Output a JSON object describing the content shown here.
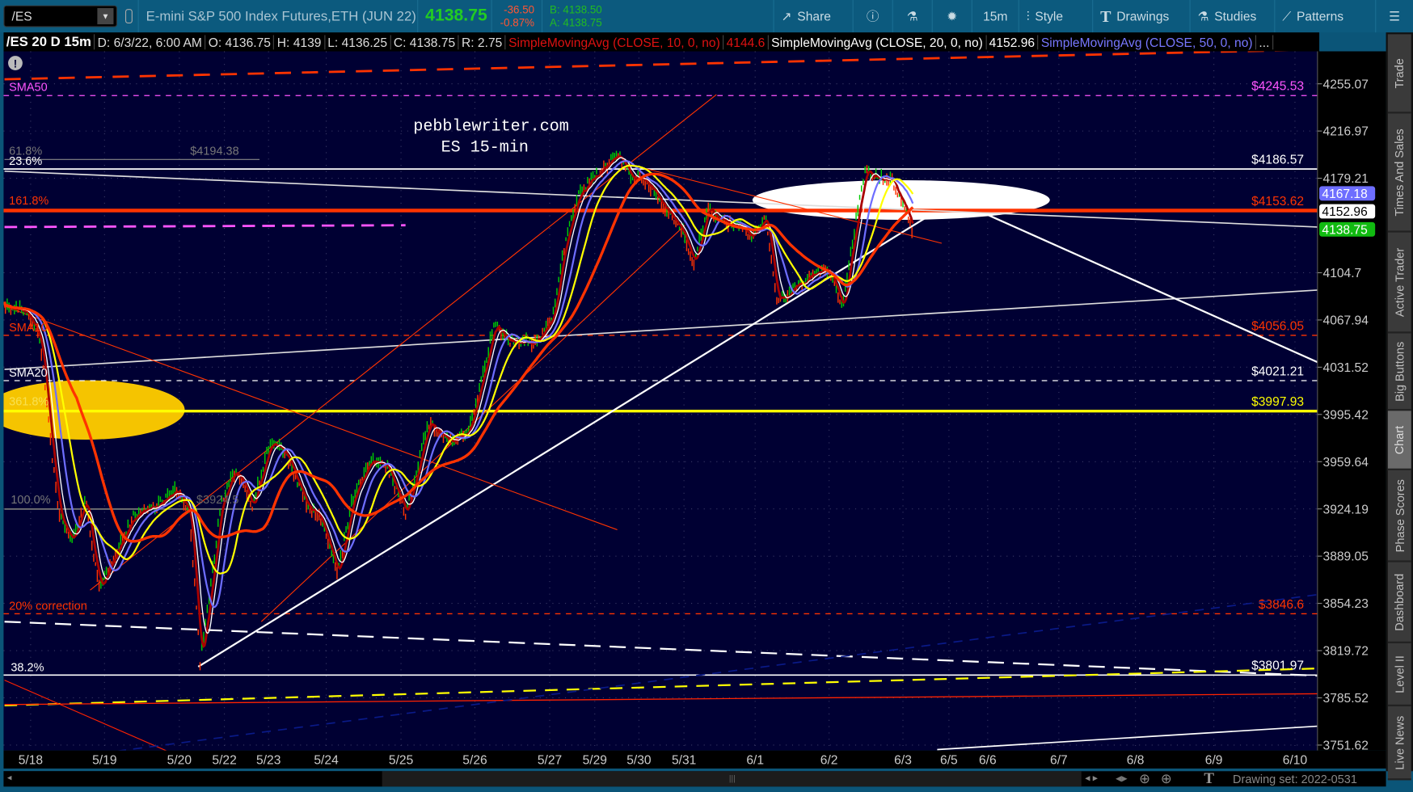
{
  "toolbar": {
    "symbol": "/ES",
    "description": "E-mini S&P 500 Index Futures,ETH (JUN 22)",
    "last": "4138.75",
    "change": "-36.50",
    "change_pct": "-0.87%",
    "bid": "B: 4138.50",
    "ask": "A: 4138.75",
    "share": "Share",
    "timeframe": "15m",
    "style": "Style",
    "drawings": "Drawings",
    "studies": "Studies",
    "patterns": "Patterns"
  },
  "infobar": {
    "title": "/ES 20 D 15m",
    "date": "D: 6/3/22, 6:00 AM",
    "open": "O: 4136.75",
    "high": "H: 4139",
    "low": "L: 4136.25",
    "close": "C: 4138.75",
    "range": "R: 2.75",
    "sma10": "SimpleMovingAvg (CLOSE, 10, 0, no)",
    "sma10_val": "4144.6",
    "sma20": "SimpleMovingAvg (CLOSE, 20, 0, no)",
    "sma20_val": "4152.96",
    "sma50": "SimpleMovingAvg (CLOSE, 50, 0, no)",
    "more": "..."
  },
  "annotation": {
    "line1": "pebblewriter.com",
    "line2": "ES 15-min"
  },
  "left_labels": {
    "sma50": "SMA50",
    "fib618": "61.8%",
    "fib618_price": "$4194.38",
    "fib236": "23.6%",
    "fib1618": "161.8%",
    "sma10": "SMA10",
    "sma20": "SMA20",
    "fib3618": "361.8%",
    "fib100": "100.0%",
    "fib100_price": "$3924.5",
    "correction": "20% correction",
    "fib382": "38.2%"
  },
  "levels": [
    {
      "label": "$4245.53",
      "price": 4245.53,
      "color": "#ff55ff"
    },
    {
      "label": "$4186.57",
      "price": 4186.57,
      "color": "#ffffff"
    },
    {
      "label": "$4153.62",
      "price": 4153.62,
      "color": "#ff3300"
    },
    {
      "label": "$4056.05",
      "price": 4056.05,
      "color": "#ff3300"
    },
    {
      "label": "$4021.21",
      "price": 4021.21,
      "color": "#ffffff"
    },
    {
      "label": "$3997.93",
      "price": 3997.93,
      "color": "#ffff00"
    },
    {
      "label": "$3846.6",
      "price": 3846.6,
      "color": "#ff3300"
    },
    {
      "label": "$3801.97",
      "price": 3801.97,
      "color": "#ffffff"
    }
  ],
  "price_axis": [
    "4255.07",
    "4216.97",
    "4179.21",
    "4104.7",
    "4067.94",
    "4031.52",
    "3995.42",
    "3959.64",
    "3924.19",
    "3889.05",
    "3854.23",
    "3819.72",
    "3785.52",
    "3751.62"
  ],
  "price_badges": [
    {
      "value": "4167.18",
      "color": "#6e6eff"
    },
    {
      "value": "4152.96",
      "color": "#ffffff"
    },
    {
      "value": "4138.75",
      "color": "#11bb11"
    }
  ],
  "date_axis": [
    "5/18",
    "5/19",
    "5/20",
    "5/22",
    "5/23",
    "5/24",
    "5/25",
    "5/26",
    "5/27",
    "5/29",
    "5/30",
    "5/31",
    "6/1",
    "6/2",
    "6/3",
    "6/5",
    "6/6",
    "6/7",
    "6/8",
    "6/9",
    "6/10"
  ],
  "side_tabs": [
    "Trade",
    "Times And Sales",
    "Active Trader",
    "Big Buttons",
    "Chart",
    "Phase Scores",
    "Dashboard",
    "Level II",
    "Live News"
  ],
  "active_tab": "Chart",
  "drawing_set": "Drawing set: 2022-0531",
  "colors": {
    "chart_bg": "#000033",
    "up": "#00cc00",
    "down": "#ff3300",
    "sma_white": "#ffffff",
    "sma_blue": "#6e6eff",
    "sma_yellow": "#ffff00",
    "sma_orange": "#ff3300"
  }
}
